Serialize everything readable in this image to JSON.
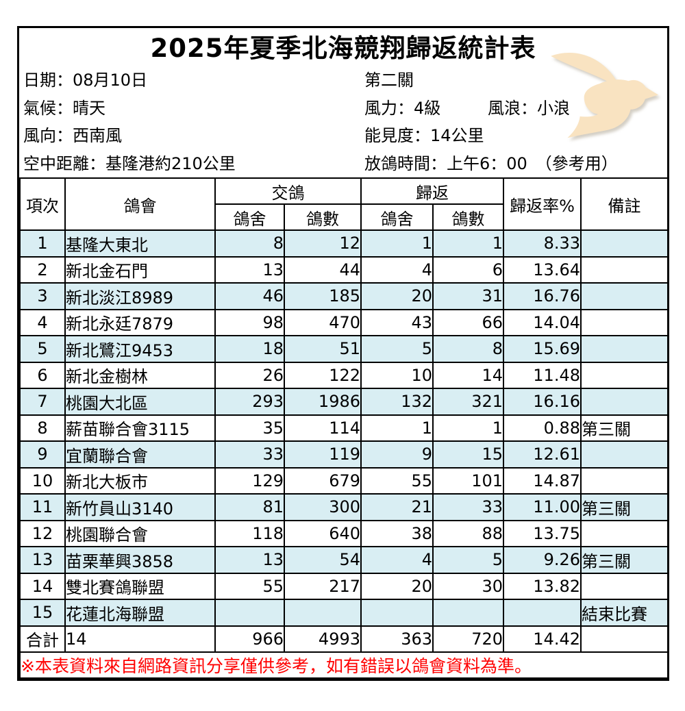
{
  "title": "2025年夏季北海競翔歸返統計表",
  "info": {
    "date": "日期：08月10日",
    "weather": "氣候：晴天",
    "wind_direction": "風向：西南風",
    "air_distance": "空中距離：基隆港約210公里",
    "stage": "第二關",
    "wind_force": "風力：4級",
    "wave": "風浪：小浪",
    "visibility": "能見度：14公里",
    "release_time": "放鴿時間：上午6：00　（參考用）"
  },
  "table": {
    "headers": {
      "item": "項次",
      "club": "鴿會",
      "sent": "交鴿",
      "returned": "歸返",
      "loft": "鴿舍",
      "count": "鴿數",
      "rate": "歸返率%",
      "note": "備註"
    },
    "rows": [
      {
        "no": "1",
        "club": "基隆大東北",
        "sent_lofts": "8",
        "sent_birds": "12",
        "ret_lofts": "1",
        "ret_birds": "1",
        "rate": "8.33",
        "note": ""
      },
      {
        "no": "2",
        "club": "新北金石門",
        "sent_lofts": "13",
        "sent_birds": "44",
        "ret_lofts": "4",
        "ret_birds": "6",
        "rate": "13.64",
        "note": ""
      },
      {
        "no": "3",
        "club": "新北淡江8989",
        "sent_lofts": "46",
        "sent_birds": "185",
        "ret_lofts": "20",
        "ret_birds": "31",
        "rate": "16.76",
        "note": ""
      },
      {
        "no": "4",
        "club": "新北永廷7879",
        "sent_lofts": "98",
        "sent_birds": "470",
        "ret_lofts": "43",
        "ret_birds": "66",
        "rate": "14.04",
        "note": ""
      },
      {
        "no": "5",
        "club": "新北鷺江9453",
        "sent_lofts": "18",
        "sent_birds": "51",
        "ret_lofts": "5",
        "ret_birds": "8",
        "rate": "15.69",
        "note": ""
      },
      {
        "no": "6",
        "club": "新北金樹林",
        "sent_lofts": "26",
        "sent_birds": "122",
        "ret_lofts": "10",
        "ret_birds": "14",
        "rate": "11.48",
        "note": ""
      },
      {
        "no": "7",
        "club": "桃園大北區",
        "sent_lofts": "293",
        "sent_birds": "1986",
        "ret_lofts": "132",
        "ret_birds": "321",
        "rate": "16.16",
        "note": ""
      },
      {
        "no": "8",
        "club": "薪苗聯合會3115",
        "sent_lofts": "35",
        "sent_birds": "114",
        "ret_lofts": "1",
        "ret_birds": "1",
        "rate": "0.88",
        "note": "第三關"
      },
      {
        "no": "9",
        "club": "宜蘭聯合會",
        "sent_lofts": "33",
        "sent_birds": "119",
        "ret_lofts": "9",
        "ret_birds": "15",
        "rate": "12.61",
        "note": ""
      },
      {
        "no": "10",
        "club": "新北大板市",
        "sent_lofts": "129",
        "sent_birds": "679",
        "ret_lofts": "55",
        "ret_birds": "101",
        "rate": "14.87",
        "note": ""
      },
      {
        "no": "11",
        "club": "新竹員山3140",
        "sent_lofts": "81",
        "sent_birds": "300",
        "ret_lofts": "21",
        "ret_birds": "33",
        "rate": "11.00",
        "note": "第三關"
      },
      {
        "no": "12",
        "club": "桃園聯合會",
        "sent_lofts": "118",
        "sent_birds": "640",
        "ret_lofts": "38",
        "ret_birds": "88",
        "rate": "13.75",
        "note": ""
      },
      {
        "no": "13",
        "club": "苗栗華興3858",
        "sent_lofts": "13",
        "sent_birds": "54",
        "ret_lofts": "4",
        "ret_birds": "5",
        "rate": "9.26",
        "note": "第三關"
      },
      {
        "no": "14",
        "club": "雙北賽鴿聯盟",
        "sent_lofts": "55",
        "sent_birds": "217",
        "ret_lofts": "20",
        "ret_birds": "30",
        "rate": "13.82",
        "note": ""
      },
      {
        "no": "15",
        "club": "花蓮北海聯盟",
        "sent_lofts": "",
        "sent_birds": "",
        "ret_lofts": "",
        "ret_birds": "",
        "rate": "",
        "note": "結束比賽"
      }
    ],
    "total": {
      "label": "合計",
      "club": "14",
      "sent_lofts": "966",
      "sent_birds": "4993",
      "ret_lofts": "363",
      "ret_birds": "720",
      "rate": "14.42",
      "note": ""
    }
  },
  "footer_note": "※本表資料來自網路資訊分享僅供參考，如有錯誤以鴿會資料為準。",
  "colors": {
    "stripe_blue": "#d9eef3",
    "note_red": "#ff0000",
    "dove_fill": "#f9e3c1",
    "border_black": "#000000"
  }
}
